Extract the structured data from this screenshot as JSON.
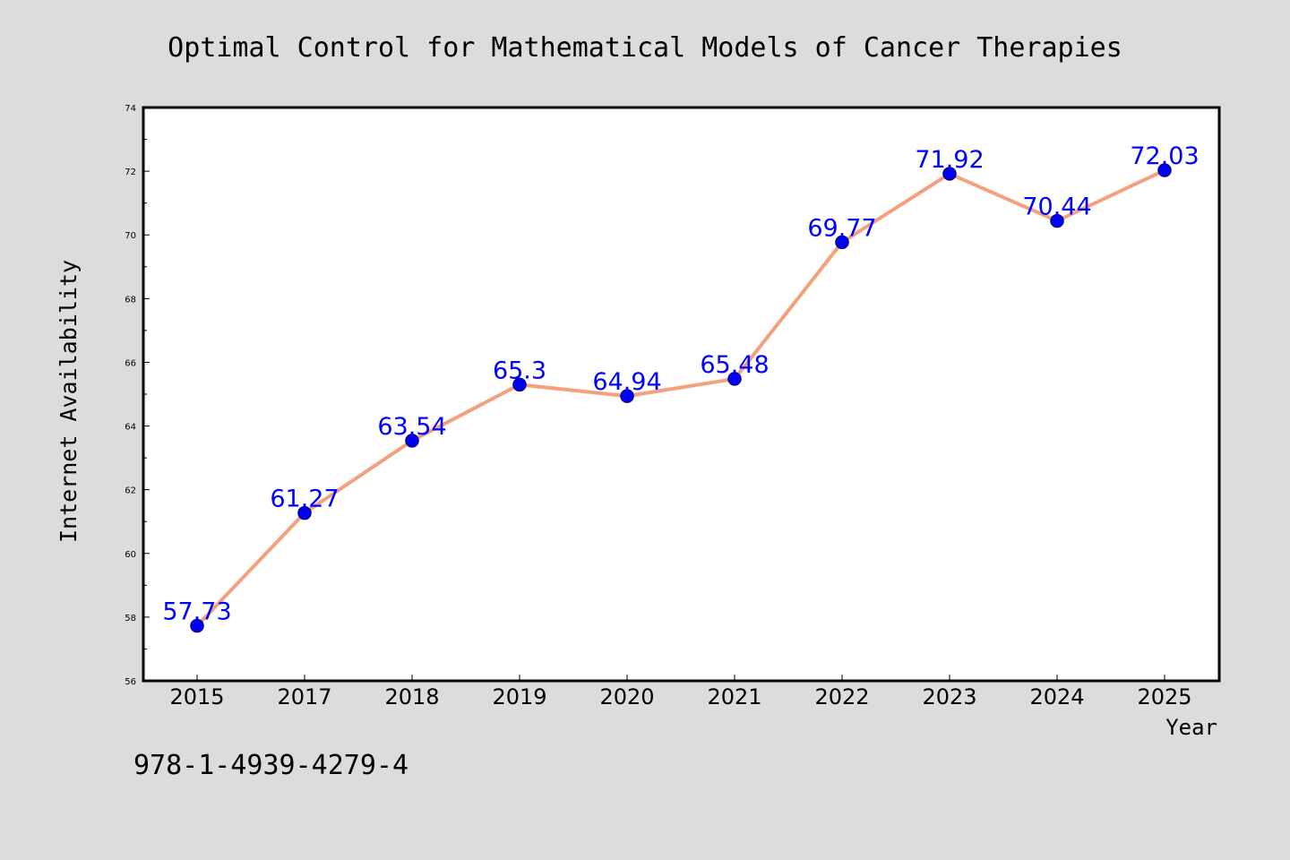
{
  "chart_data": {
    "type": "line",
    "title": "Optimal Control for Mathematical Models of Cancer Therapies",
    "xlabel": "Year",
    "ylabel": "Internet Availability",
    "categories": [
      "2015",
      "2017",
      "2018",
      "2019",
      "2020",
      "2021",
      "2022",
      "2023",
      "2024",
      "2025"
    ],
    "values": [
      57.73,
      61.27,
      63.54,
      65.3,
      64.94,
      65.48,
      69.77,
      71.92,
      70.44,
      72.03
    ],
    "data_labels": [
      "57.73",
      "61.27",
      "63.54",
      "65.3",
      "64.94",
      "65.48",
      "69.77",
      "71.92",
      "70.44",
      "72.03"
    ],
    "ylim": [
      56,
      74
    ],
    "yticks": [
      56,
      58,
      60,
      62,
      64,
      66,
      68,
      70,
      72,
      74
    ],
    "grid": false,
    "legend": "none",
    "colors": {
      "line": "#f4a07c",
      "marker": "#0000ff",
      "marker_edge": "#00008b",
      "label": "#0000ff"
    }
  },
  "footer": {
    "isbn": "978-1-4939-4279-4"
  }
}
